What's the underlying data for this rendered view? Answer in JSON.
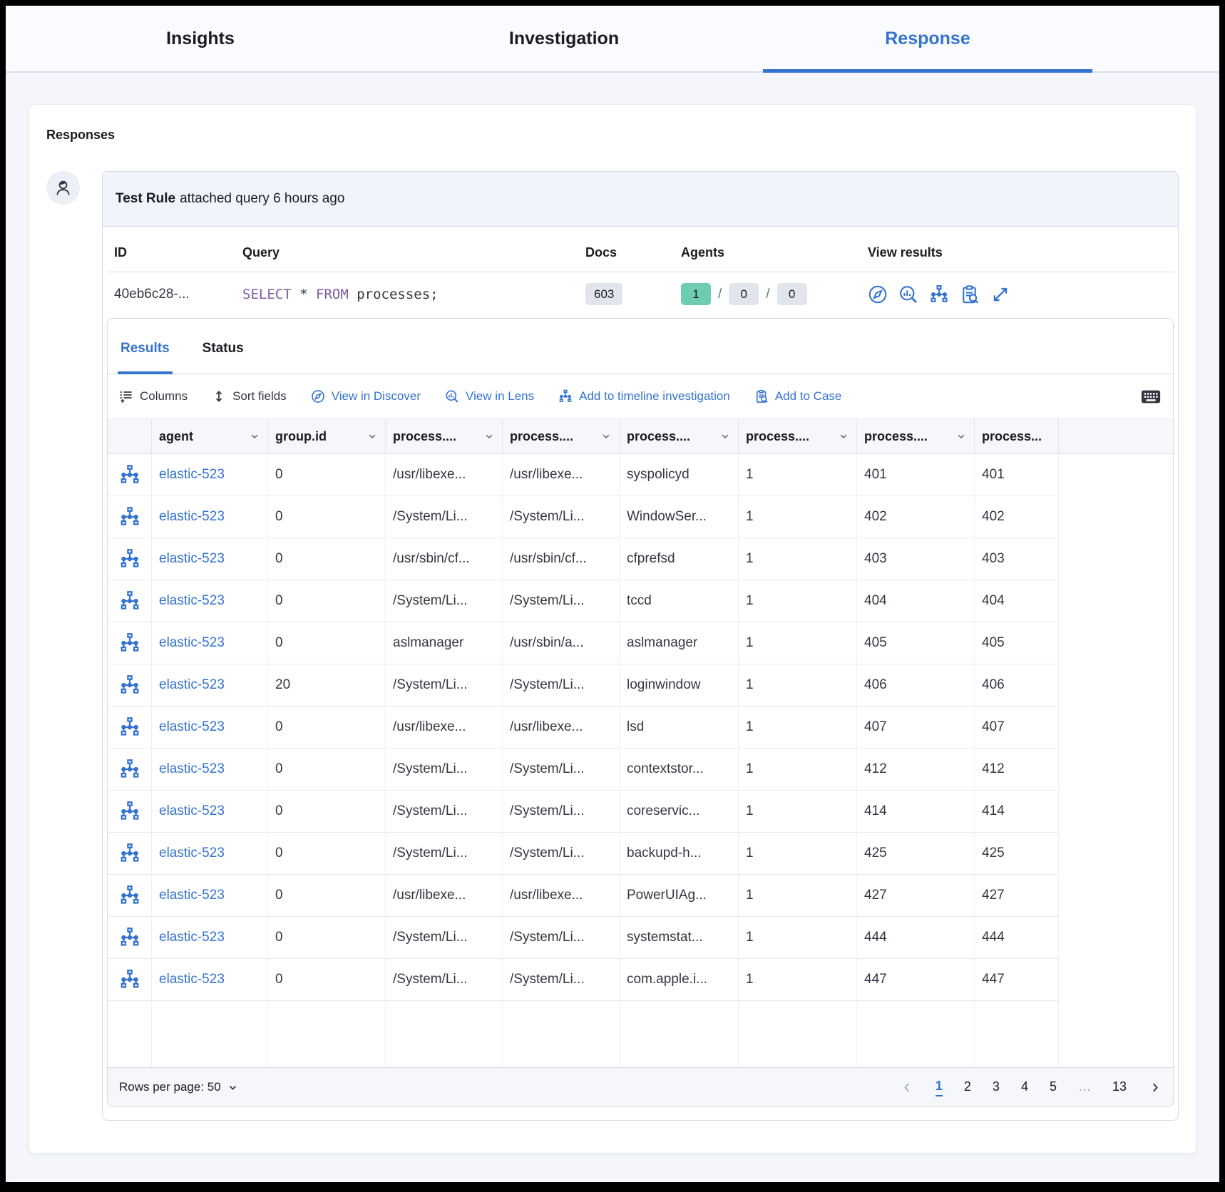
{
  "colors": {
    "primary_blue": "#3473cf",
    "teal_badge": "#6dccb1",
    "gray_badge": "#e0e5ee",
    "keyword_purple": "#7c5aa5"
  },
  "header_tabs": [
    {
      "label": "Insights",
      "active": false
    },
    {
      "label": "Investigation",
      "active": false
    },
    {
      "label": "Response",
      "active": true
    }
  ],
  "responses": {
    "title": "Responses"
  },
  "comment": {
    "author": "Test Rule",
    "action": "attached query 6 hours ago"
  },
  "meta": {
    "headers": {
      "id": "ID",
      "query": "Query",
      "docs": "Docs",
      "agents": "Agents",
      "view_results": "View results"
    },
    "id_value": "40eb6c28-...",
    "query": {
      "kw_select": "SELECT",
      "star": "*",
      "kw_from": "FROM",
      "rest": "processes;"
    },
    "docs_count": "603",
    "agents": {
      "success": "1",
      "pending": "0",
      "failed": "0",
      "separator": "/"
    },
    "view_results_icons": [
      "discover-icon",
      "lens-icon",
      "analyze-timeline-icon",
      "case-icon",
      "expand-icon"
    ]
  },
  "results_tabs": {
    "results": "Results",
    "status": "Status"
  },
  "toolbar": {
    "columns": "Columns",
    "sort_fields": "Sort fields",
    "view_in_discover": "View in Discover",
    "view_in_lens": "View in Lens",
    "add_to_timeline": "Add to timeline investigation",
    "add_to_case": "Add to Case"
  },
  "grid": {
    "columns": [
      "agent",
      "group.id",
      "process....",
      "process....",
      "process....",
      "process....",
      "process....",
      "process..."
    ],
    "rows": [
      {
        "agent": "elastic-523",
        "group_id": "0",
        "p1": "/usr/libexe...",
        "p2": "/usr/libexe...",
        "p3": "syspolicyd",
        "p4": "1",
        "p5": "401",
        "p6": "401"
      },
      {
        "agent": "elastic-523",
        "group_id": "0",
        "p1": "/System/Li...",
        "p2": "/System/Li...",
        "p3": "WindowSer...",
        "p4": "1",
        "p5": "402",
        "p6": "402"
      },
      {
        "agent": "elastic-523",
        "group_id": "0",
        "p1": "/usr/sbin/cf...",
        "p2": "/usr/sbin/cf...",
        "p3": "cfprefsd",
        "p4": "1",
        "p5": "403",
        "p6": "403"
      },
      {
        "agent": "elastic-523",
        "group_id": "0",
        "p1": "/System/Li...",
        "p2": "/System/Li...",
        "p3": "tccd",
        "p4": "1",
        "p5": "404",
        "p6": "404"
      },
      {
        "agent": "elastic-523",
        "group_id": "0",
        "p1": "aslmanager",
        "p2": "/usr/sbin/a...",
        "p3": "aslmanager",
        "p4": "1",
        "p5": "405",
        "p6": "405"
      },
      {
        "agent": "elastic-523",
        "group_id": "20",
        "p1": "/System/Li...",
        "p2": "/System/Li...",
        "p3": "loginwindow",
        "p4": "1",
        "p5": "406",
        "p6": "406"
      },
      {
        "agent": "elastic-523",
        "group_id": "0",
        "p1": "/usr/libexe...",
        "p2": "/usr/libexe...",
        "p3": "lsd",
        "p4": "1",
        "p5": "407",
        "p6": "407"
      },
      {
        "agent": "elastic-523",
        "group_id": "0",
        "p1": "/System/Li...",
        "p2": "/System/Li...",
        "p3": "contextstor...",
        "p4": "1",
        "p5": "412",
        "p6": "412"
      },
      {
        "agent": "elastic-523",
        "group_id": "0",
        "p1": "/System/Li...",
        "p2": "/System/Li...",
        "p3": "coreservic...",
        "p4": "1",
        "p5": "414",
        "p6": "414"
      },
      {
        "agent": "elastic-523",
        "group_id": "0",
        "p1": "/System/Li...",
        "p2": "/System/Li...",
        "p3": "backupd-h...",
        "p4": "1",
        "p5": "425",
        "p6": "425"
      },
      {
        "agent": "elastic-523",
        "group_id": "0",
        "p1": "/usr/libexe...",
        "p2": "/usr/libexe...",
        "p3": "PowerUIAg...",
        "p4": "1",
        "p5": "427",
        "p6": "427"
      },
      {
        "agent": "elastic-523",
        "group_id": "0",
        "p1": "/System/Li...",
        "p2": "/System/Li...",
        "p3": "systemstat...",
        "p4": "1",
        "p5": "444",
        "p6": "444"
      },
      {
        "agent": "elastic-523",
        "group_id": "0",
        "p1": "/System/Li...",
        "p2": "/System/Li...",
        "p3": "com.apple.i...",
        "p4": "1",
        "p5": "447",
        "p6": "447"
      }
    ]
  },
  "footer": {
    "rows_per_page": "Rows per page: 50",
    "pages": [
      "1",
      "2",
      "3",
      "4",
      "5",
      "…",
      "13"
    ],
    "active_page": "1"
  }
}
